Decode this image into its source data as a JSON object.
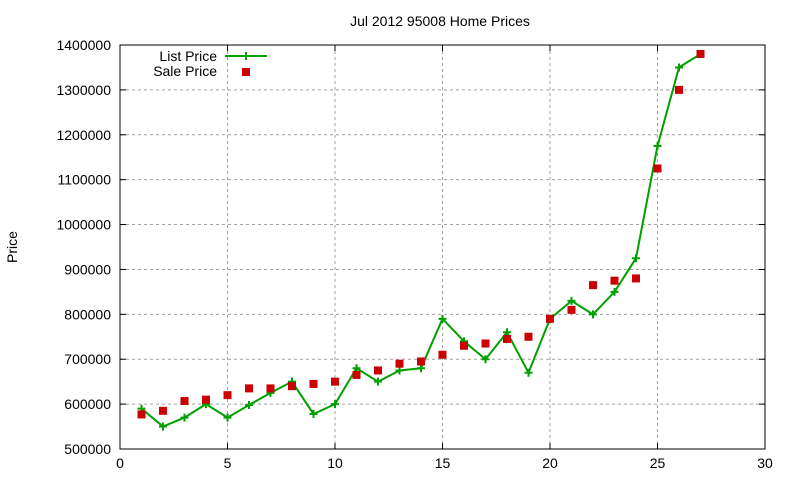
{
  "chart_data": {
    "type": "line",
    "title": "Jul 2012 95008 Home Prices",
    "xlabel": "",
    "ylabel": "Price",
    "xlim": [
      0,
      30
    ],
    "ylim": [
      500000,
      1400000
    ],
    "x_ticks": [
      0,
      5,
      10,
      15,
      20,
      25,
      30
    ],
    "y_ticks": [
      500000,
      600000,
      700000,
      800000,
      900000,
      1000000,
      1100000,
      1200000,
      1300000,
      1400000
    ],
    "grid": true,
    "legend_position": "top-left",
    "x": [
      1,
      2,
      3,
      4,
      5,
      6,
      7,
      8,
      9,
      10,
      11,
      12,
      13,
      14,
      15,
      16,
      17,
      18,
      19,
      20,
      21,
      22,
      23,
      24,
      25,
      26,
      27
    ],
    "series": [
      {
        "name": "List Price",
        "style": "linespoints",
        "color": "#00a000",
        "values": [
          590000,
          550000,
          570000,
          600000,
          570000,
          598000,
          625000,
          650000,
          578000,
          600000,
          680000,
          650000,
          675000,
          680000,
          790000,
          740000,
          700000,
          760000,
          670000,
          790000,
          830000,
          800000,
          850000,
          925000,
          1175000,
          1350000,
          1380000
        ]
      },
      {
        "name": "Sale Price",
        "style": "points",
        "color": "#cc0000",
        "values": [
          577000,
          585000,
          607000,
          610000,
          620000,
          635000,
          635000,
          640000,
          645000,
          650000,
          665000,
          675000,
          690000,
          695000,
          710000,
          730000,
          735000,
          745000,
          750000,
          790000,
          810000,
          865000,
          875000,
          880000,
          1125000,
          1300000,
          1380000
        ]
      }
    ]
  }
}
